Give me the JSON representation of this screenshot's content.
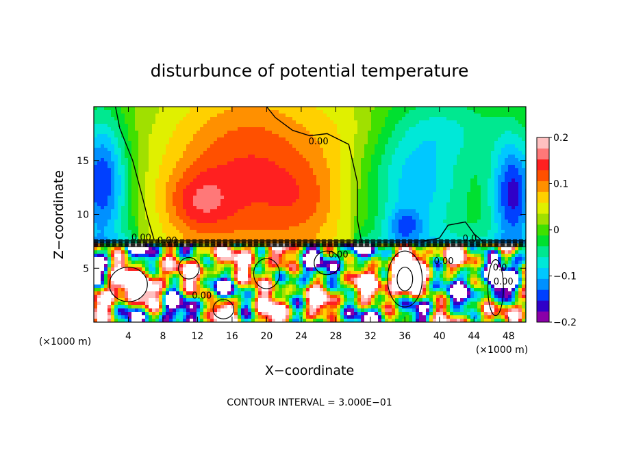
{
  "chart_data": {
    "type": "heatmap",
    "title": "disturbunce of potential temperature",
    "xlabel": "X−coordinate",
    "ylabel": "Z−coordinate",
    "x_unit": "(×1000 m)",
    "footer": "CONTOUR INTERVAL = 3.000E−01",
    "x_ticks": [
      4,
      8,
      12,
      16,
      20,
      24,
      28,
      32,
      36,
      40,
      44,
      48
    ],
    "x_tick_labels": [
      "4",
      "8",
      "12",
      "16",
      "20",
      "24",
      "28",
      "32",
      "36",
      "40",
      "44",
      "48"
    ],
    "y_ticks": [
      5,
      10,
      15
    ],
    "y_tick_labels": [
      "5",
      "10",
      "15"
    ],
    "xlim": [
      0,
      50
    ],
    "ylim": [
      0,
      20
    ],
    "colorbar": {
      "ticks": [
        0.2,
        0.1,
        0,
        -0.1,
        -0.2
      ],
      "tick_labels": [
        "0.2",
        "0.1",
        "0",
        "−0.1",
        "−0.2"
      ],
      "range": [
        -0.2,
        0.2
      ],
      "colors": [
        "#8a00a8",
        "#3000c8",
        "#0040ff",
        "#0090ff",
        "#00c8ff",
        "#00e8d8",
        "#00e890",
        "#00e030",
        "#40e000",
        "#a0e000",
        "#e0f000",
        "#ffd000",
        "#ff9000",
        "#ff5000",
        "#ff2020",
        "#ff7878",
        "#ffc0c0"
      ]
    },
    "contour_labels": [
      "0.00",
      "0.00",
      "0.00",
      "0.00",
      "0.00",
      "0.00",
      "0.00",
      "0.0",
      "0.0"
    ],
    "field_description_regions": [
      {
        "x": [
          0,
          3
        ],
        "z": [
          10,
          20
        ],
        "value": -0.1
      },
      {
        "x": [
          8,
          30
        ],
        "z": [
          8,
          20
        ],
        "value": 0.12
      },
      {
        "x": [
          10,
          15
        ],
        "z": [
          10,
          13
        ],
        "value": 0.16
      },
      {
        "x": [
          30,
          40
        ],
        "z": [
          8,
          20
        ],
        "value": -0.02
      },
      {
        "x": [
          36,
          42
        ],
        "z": [
          9,
          14
        ],
        "value": -0.08
      },
      {
        "x": [
          47,
          50
        ],
        "z": [
          9,
          16
        ],
        "value": -0.12
      }
    ],
    "grid": false,
    "legend_position": "right"
  }
}
